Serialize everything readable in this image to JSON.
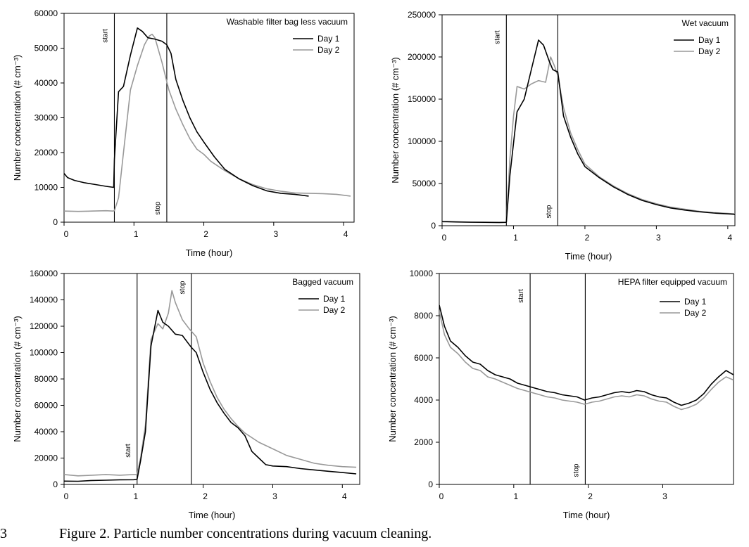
{
  "figure_caption": "Figure 2. Particle number concentrations during vacuum cleaning.",
  "caption_line_number": "3",
  "series_colors": {
    "Day 1": "#000000",
    "Day 2": "#999999"
  },
  "chart_data": [
    {
      "type": "line",
      "title": "Washable filter bag less vacuum",
      "xlabel": "Time (hour)",
      "ylabel": "Number concentration (# cm⁻³)",
      "xlim": [
        0,
        4.15
      ],
      "ylim": [
        0,
        60000
      ],
      "xticks": [
        0,
        1,
        2,
        3,
        4
      ],
      "yticks": [
        0,
        10000,
        20000,
        30000,
        40000,
        50000,
        60000
      ],
      "events": [
        {
          "label": "start",
          "x": 0.72
        },
        {
          "label": "stop",
          "x": 1.47
        }
      ],
      "series": [
        {
          "name": "Day 1",
          "x": [
            0,
            0.05,
            0.15,
            0.3,
            0.45,
            0.6,
            0.71,
            0.72,
            0.78,
            0.85,
            0.95,
            1.05,
            1.12,
            1.2,
            1.3,
            1.4,
            1.47,
            1.53,
            1.6,
            1.7,
            1.8,
            1.9,
            2.0,
            2.15,
            2.3,
            2.5,
            2.7,
            2.9,
            3.1,
            3.3,
            3.5
          ],
          "y": [
            14000,
            12800,
            12000,
            11300,
            10800,
            10300,
            10000,
            18000,
            37500,
            39000,
            48000,
            55800,
            54800,
            53000,
            52600,
            52000,
            51000,
            48500,
            41000,
            35000,
            30000,
            26000,
            23000,
            18800,
            15200,
            12500,
            10500,
            9000,
            8300,
            8000,
            7500
          ]
        },
        {
          "name": "Day 2",
          "x": [
            0,
            0.2,
            0.4,
            0.6,
            0.7,
            0.72,
            0.78,
            0.85,
            0.95,
            1.05,
            1.15,
            1.22,
            1.26,
            1.3,
            1.4,
            1.5,
            1.6,
            1.7,
            1.8,
            1.9,
            2.0,
            2.1,
            2.3,
            2.5,
            2.7,
            2.9,
            3.1,
            3.3,
            3.5,
            3.7,
            3.9,
            4.1
          ],
          "y": [
            3200,
            3100,
            3200,
            3300,
            3200,
            3300,
            7000,
            20000,
            38000,
            45000,
            51000,
            53500,
            54000,
            53000,
            46000,
            38000,
            32500,
            28000,
            24000,
            21000,
            19500,
            17500,
            14800,
            12500,
            10800,
            9600,
            8900,
            8400,
            8300,
            8200,
            8000,
            7500
          ]
        }
      ]
    },
    {
      "type": "line",
      "title": "Wet vacuum",
      "xlabel": "Time (hour)",
      "ylabel": "Number concentration (# cm⁻³)",
      "xlim": [
        0,
        4.1
      ],
      "ylim": [
        0,
        250000
      ],
      "xticks": [
        0,
        1,
        2,
        3,
        4
      ],
      "yticks": [
        0,
        50000,
        100000,
        150000,
        200000,
        250000
      ],
      "events": [
        {
          "label": "start",
          "x": 0.9
        },
        {
          "label": "stop",
          "x": 1.62
        }
      ],
      "series": [
        {
          "name": "Day 1",
          "x": [
            0,
            0.2,
            0.4,
            0.6,
            0.8,
            0.9,
            0.95,
            1.05,
            1.15,
            1.25,
            1.35,
            1.42,
            1.5,
            1.55,
            1.62,
            1.7,
            1.8,
            1.9,
            2.0,
            2.2,
            2.4,
            2.6,
            2.8,
            3.0,
            3.2,
            3.4,
            3.6,
            3.8,
            4.0,
            4.1
          ],
          "y": [
            5000,
            4500,
            4200,
            4000,
            3800,
            4000,
            60000,
            135000,
            150000,
            185000,
            220000,
            214000,
            195000,
            185000,
            182000,
            130000,
            105000,
            85000,
            70000,
            57000,
            46000,
            37000,
            30000,
            25000,
            21000,
            18500,
            16500,
            15000,
            14000,
            13500
          ]
        },
        {
          "name": "Day 2",
          "x": [
            0,
            0.2,
            0.4,
            0.6,
            0.8,
            0.9,
            0.95,
            1.0,
            1.05,
            1.15,
            1.25,
            1.35,
            1.45,
            1.52,
            1.57,
            1.62,
            1.7,
            1.8,
            1.9,
            2.0,
            2.2,
            2.4,
            2.6,
            2.8,
            3.0,
            3.2,
            3.4,
            3.6,
            3.8,
            4.0,
            4.1
          ],
          "y": [
            4500,
            4200,
            4000,
            3900,
            3800,
            3900,
            80000,
            130000,
            165000,
            162000,
            168000,
            172000,
            170000,
            200000,
            190000,
            178000,
            140000,
            110000,
            90000,
            73000,
            58000,
            47000,
            38000,
            31000,
            26000,
            22000,
            19500,
            17000,
            15500,
            14500,
            14000
          ]
        }
      ]
    },
    {
      "type": "line",
      "title": "Bagged vacuum",
      "xlabel": "Time (hour)",
      "ylabel": "Number concentration (# cm⁻³)",
      "xlim": [
        0,
        4.25
      ],
      "ylim": [
        0,
        160000
      ],
      "xticks": [
        0,
        1,
        2,
        3,
        4
      ],
      "yticks": [
        0,
        20000,
        40000,
        60000,
        80000,
        100000,
        120000,
        140000,
        160000
      ],
      "events": [
        {
          "label": "start",
          "x": 1.05
        },
        {
          "label": "stop",
          "x": 1.83
        }
      ],
      "series": [
        {
          "name": "Day 1",
          "x": [
            0,
            0.2,
            0.4,
            0.6,
            0.8,
            1.0,
            1.05,
            1.1,
            1.17,
            1.25,
            1.35,
            1.42,
            1.5,
            1.6,
            1.7,
            1.8,
            1.83,
            1.9,
            2.0,
            2.1,
            2.2,
            2.3,
            2.4,
            2.5,
            2.6,
            2.7,
            2.8,
            2.9,
            3.0,
            3.2,
            3.4,
            3.6,
            3.8,
            4.0,
            4.2
          ],
          "y": [
            2500,
            2400,
            3000,
            3200,
            3500,
            3600,
            4000,
            18000,
            40000,
            105000,
            132000,
            123000,
            120000,
            114000,
            113000,
            106000,
            104000,
            100000,
            85000,
            72000,
            62000,
            54000,
            47000,
            43000,
            37000,
            25000,
            20000,
            15000,
            14000,
            13500,
            12000,
            11000,
            10000,
            9000,
            8000
          ]
        },
        {
          "name": "Day 2",
          "x": [
            0,
            0.2,
            0.4,
            0.6,
            0.8,
            1.0,
            1.05,
            1.1,
            1.17,
            1.25,
            1.35,
            1.42,
            1.5,
            1.55,
            1.6,
            1.7,
            1.8,
            1.9,
            2.0,
            2.1,
            2.2,
            2.3,
            2.4,
            2.5,
            2.6,
            2.8,
            3.0,
            3.2,
            3.4,
            3.6,
            3.8,
            4.0,
            4.2
          ],
          "y": [
            7500,
            6500,
            7000,
            7500,
            7000,
            7500,
            7500,
            20000,
            45000,
            110000,
            122000,
            118000,
            130000,
            147000,
            138000,
            125000,
            118000,
            112000,
            92000,
            78000,
            66000,
            57000,
            50000,
            44000,
            39000,
            32000,
            27000,
            22000,
            19000,
            16000,
            14500,
            13500,
            13000
          ]
        }
      ]
    },
    {
      "type": "line",
      "title": "HEPA filter equipped vacuum",
      "xlabel": "Time (hour)",
      "ylabel": "Number concentration (# cm⁻³)",
      "xlim": [
        0,
        3.95
      ],
      "ylim": [
        0,
        10000
      ],
      "xticks": [
        0,
        1,
        2,
        3,
        4
      ],
      "yticks": [
        0,
        2000,
        4000,
        6000,
        8000,
        10000
      ],
      "events": [
        {
          "label": "start",
          "x": 1.22
        },
        {
          "label": "stop",
          "x": 1.96
        }
      ],
      "series": [
        {
          "name": "Day 1",
          "x": [
            0,
            0.07,
            0.15,
            0.25,
            0.35,
            0.45,
            0.55,
            0.65,
            0.75,
            0.85,
            0.95,
            1.05,
            1.15,
            1.25,
            1.35,
            1.45,
            1.55,
            1.65,
            1.75,
            1.85,
            1.95,
            2.05,
            2.15,
            2.25,
            2.35,
            2.45,
            2.55,
            2.65,
            2.75,
            2.85,
            2.95,
            3.05,
            3.15,
            3.25,
            3.35,
            3.45,
            3.55,
            3.65,
            3.75,
            3.85,
            3.95
          ],
          "y": [
            8500,
            7500,
            6800,
            6500,
            6100,
            5800,
            5700,
            5400,
            5200,
            5100,
            5000,
            4800,
            4700,
            4600,
            4500,
            4400,
            4350,
            4250,
            4200,
            4150,
            4000,
            4100,
            4150,
            4250,
            4350,
            4400,
            4350,
            4450,
            4400,
            4250,
            4150,
            4100,
            3900,
            3750,
            3850,
            4000,
            4300,
            4750,
            5100,
            5400,
            5200
          ]
        },
        {
          "name": "Day 2",
          "x": [
            0,
            0.07,
            0.15,
            0.25,
            0.35,
            0.45,
            0.55,
            0.65,
            0.75,
            0.85,
            0.95,
            1.05,
            1.15,
            1.25,
            1.35,
            1.45,
            1.55,
            1.65,
            1.75,
            1.85,
            1.95,
            2.05,
            2.15,
            2.25,
            2.35,
            2.45,
            2.55,
            2.65,
            2.75,
            2.85,
            2.95,
            3.05,
            3.15,
            3.25,
            3.35,
            3.45,
            3.55,
            3.65,
            3.75,
            3.85,
            3.95
          ],
          "y": [
            8200,
            7100,
            6500,
            6200,
            5800,
            5500,
            5400,
            5100,
            5000,
            4850,
            4700,
            4550,
            4450,
            4350,
            4250,
            4150,
            4100,
            4000,
            3950,
            3900,
            3800,
            3900,
            3950,
            4050,
            4150,
            4200,
            4150,
            4250,
            4200,
            4050,
            3950,
            3900,
            3700,
            3550,
            3650,
            3800,
            4100,
            4500,
            4850,
            5100,
            4950
          ]
        }
      ]
    }
  ]
}
